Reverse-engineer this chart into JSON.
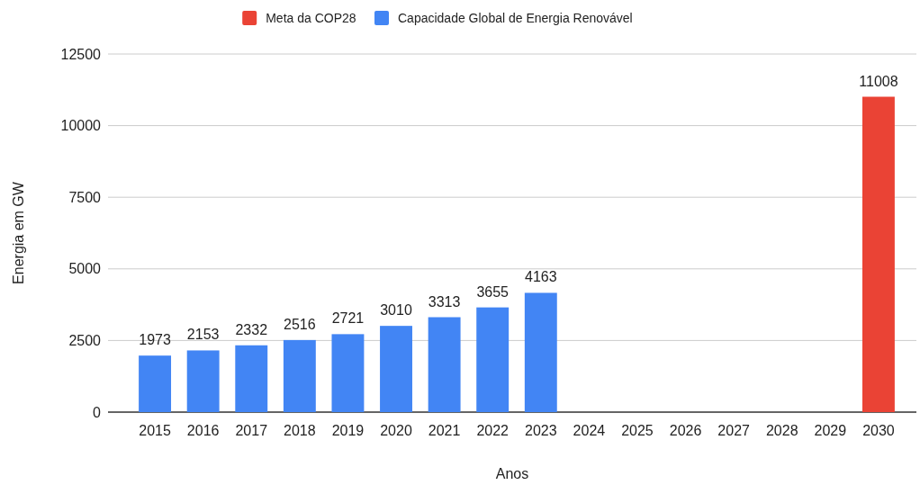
{
  "chart_data": {
    "type": "bar",
    "xlabel": "Anos",
    "ylabel": "Energia em GW",
    "categories": [
      "2015",
      "2016",
      "2017",
      "2018",
      "2019",
      "2020",
      "2021",
      "2022",
      "2023",
      "2024",
      "2025",
      "2026",
      "2027",
      "2028",
      "2029",
      "2030"
    ],
    "series": [
      {
        "name": "Meta da COP28",
        "color": "#ea4335",
        "values": [
          null,
          null,
          null,
          null,
          null,
          null,
          null,
          null,
          null,
          null,
          null,
          null,
          null,
          null,
          null,
          11008
        ]
      },
      {
        "name": "Capacidade Global de Energia Renovável",
        "color": "#4285f4",
        "values": [
          1973,
          2153,
          2332,
          2516,
          2721,
          3010,
          3313,
          3655,
          4163,
          null,
          null,
          null,
          null,
          null,
          null,
          null
        ]
      }
    ],
    "stacked": true,
    "data_labels": true,
    "ylim": [
      0,
      12500
    ],
    "yticks": [
      0,
      2500,
      5000,
      7500,
      10000,
      12500
    ],
    "grid": "y",
    "legend": "top"
  }
}
